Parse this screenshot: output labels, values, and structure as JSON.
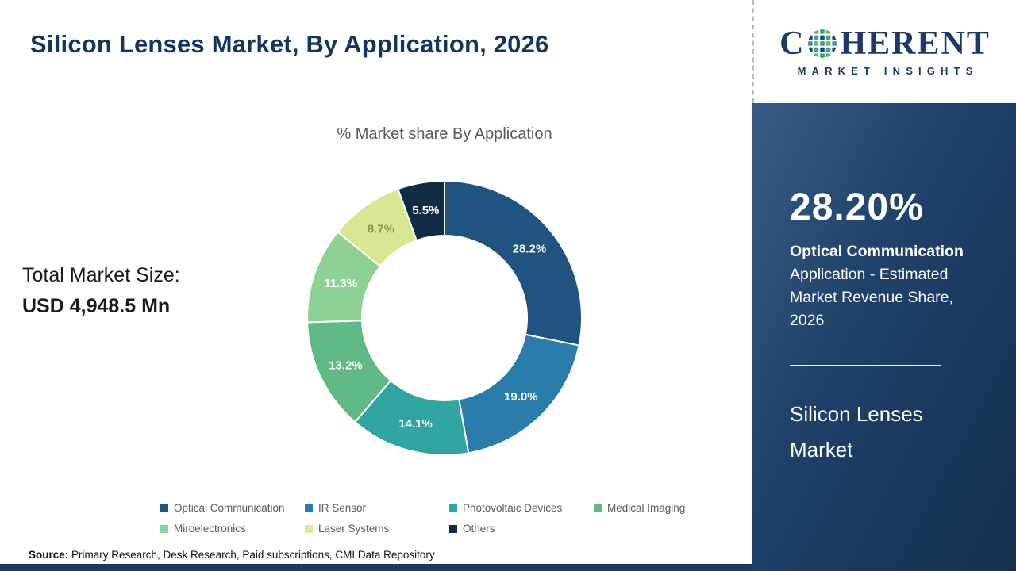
{
  "header": {
    "title": "Silicon Lenses Market, By Application, 2026"
  },
  "logo": {
    "wordmark_prefix": "C",
    "wordmark_suffix": "HERENT",
    "tagline": "MARKET INSIGHTS"
  },
  "chart_data": {
    "type": "pie",
    "subtype": "donut",
    "title": "% Market share By Application",
    "labels": [
      "Optical Communication",
      "IR Sensor",
      "Photovoltaic Devices",
      "Medical Imaging",
      "Miroelectronics",
      "Laser Systems",
      "Others"
    ],
    "values": [
      28.2,
      19.0,
      14.1,
      13.2,
      11.3,
      8.7,
      5.5
    ],
    "display_labels": [
      "28.2%",
      "19.0%",
      "14.1%",
      "13.2%",
      "11.3%",
      "8.7%",
      "5.5%"
    ],
    "colors": [
      "#1f5380",
      "#2a7dab",
      "#31a5a1",
      "#5fba85",
      "#8ed194",
      "#d9e793",
      "#102c44"
    ],
    "label_colors": [
      "#ffffff",
      "#ffffff",
      "#ffffff",
      "#ffffff",
      "#ffffff",
      "#8f9245",
      "#ffffff"
    ],
    "start_angle_deg": 0,
    "direction": "clockwise",
    "legend_position": "bottom"
  },
  "total_market": {
    "label": "Total Market Size:",
    "value": "USD 4,948.5 Mn"
  },
  "sidebar": {
    "highlight_value": "28.20%",
    "highlight_bold": "Optical Communication",
    "highlight_rest": " Application - Estimated Market Revenue Share, 2026",
    "market_name": "Silicon Lenses Market"
  },
  "source": {
    "label": "Source:",
    "text": " Primary Research, Desk Research, Paid subscriptions, CMI Data Repository"
  },
  "theme": {
    "accent_navy": "#1c3a5f",
    "title_color": "#16355c",
    "muted_text": "#595959"
  }
}
